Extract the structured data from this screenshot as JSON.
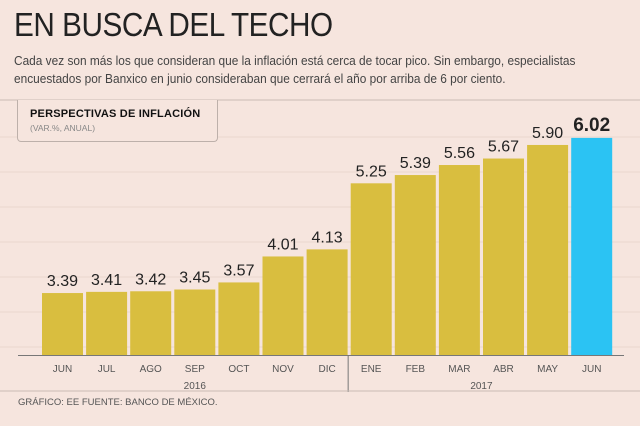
{
  "header": {
    "title": "EN BUSCA DEL TECHO",
    "subtitle": "Cada vez son más los que consideran que la inflación está cerca de tocar pico. Sin embargo, especialistas encuestados por Banxico en junio consideraban que cerrará el año por arriba de 6 por ciento."
  },
  "legend": {
    "title": "PERSPECTIVAS DE INFLACIÓN",
    "subtitle": "(VAR.%, ANUAL)"
  },
  "footer": "GRÁFICO: EE  FUENTE: BANCO DE MÉXICO.",
  "chart_data": {
    "type": "bar",
    "title": "PERSPECTIVAS DE INFLACIÓN",
    "subtitle": "(VAR.%, ANUAL)",
    "categories": [
      "JUN",
      "JUL",
      "AGO",
      "SEP",
      "OCT",
      "NOV",
      "DIC",
      "ENE",
      "FEB",
      "MAR",
      "ABR",
      "MAY",
      "JUN"
    ],
    "year_groups": [
      {
        "label": "2016",
        "count": 7
      },
      {
        "label": "2017",
        "count": 6
      }
    ],
    "values": [
      3.39,
      3.41,
      3.42,
      3.45,
      3.57,
      4.01,
      4.13,
      5.25,
      5.39,
      5.56,
      5.67,
      5.9,
      6.02
    ],
    "data_labels": [
      "3.39",
      "3.41",
      "3.42",
      "3.45",
      "3.57",
      "4.01",
      "4.13",
      "5.25",
      "5.39",
      "5.56",
      "5.67",
      "5.90",
      "6.02"
    ],
    "highlight_index": 12,
    "ylim": [
      2.34,
      6.4
    ],
    "grid": true,
    "colors": {
      "bar": "#d9be3f",
      "highlight": "#2bc3f3",
      "background": "#f6e5de"
    }
  }
}
